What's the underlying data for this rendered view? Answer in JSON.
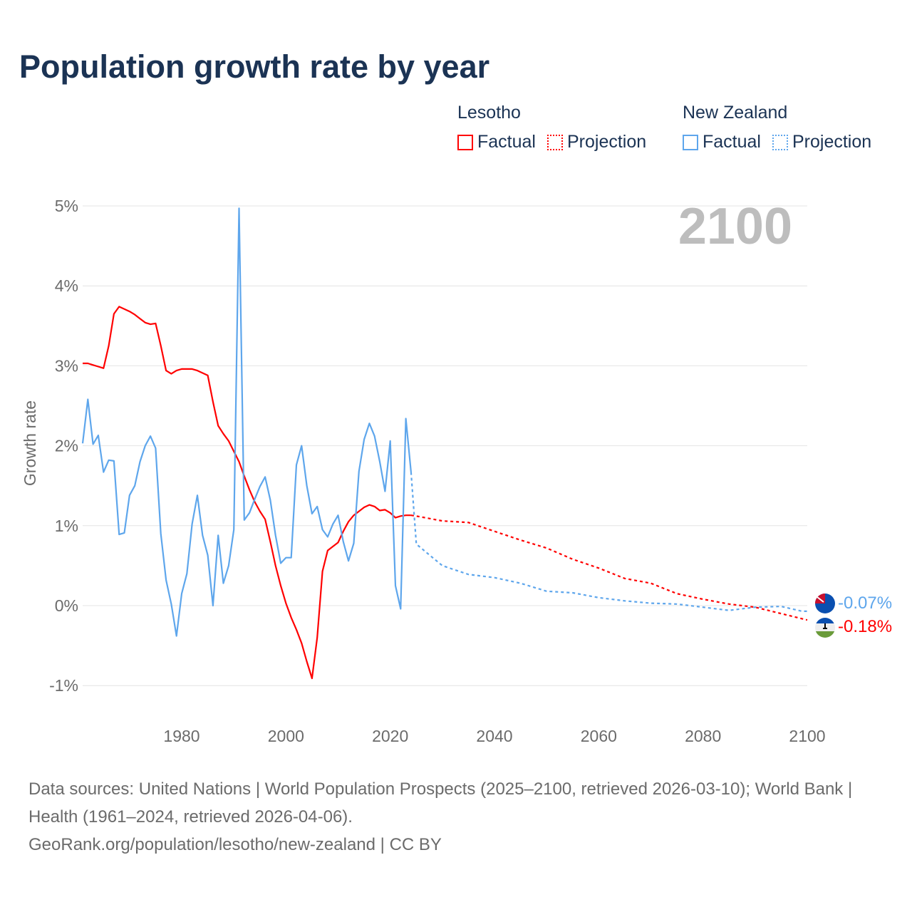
{
  "title": "Population growth rate by year",
  "legend": [
    {
      "country": "Lesotho",
      "factual_label": "Factual",
      "projection_label": "Projection",
      "color": "#ff0000"
    },
    {
      "country": "New Zealand",
      "factual_label": "Factual",
      "projection_label": "Projection",
      "color": "#5ea6ec"
    }
  ],
  "year_display": "2100",
  "end_labels": {
    "new_zealand": "-0.07%",
    "lesotho": "-0.18%"
  },
  "source_line1": "Data sources: United Nations | World Population Prospects (2025–2100, retrieved 2026-03-10); World Bank | Health (1961–2024, retrieved 2026-04-06).",
  "source_line2": "GeoRank.org/population/lesotho/new-zealand | CC BY",
  "chart_data": {
    "type": "line",
    "title": "Population growth rate by year",
    "xlabel": "",
    "ylabel": "Growth rate",
    "xlim": [
      1961,
      2100
    ],
    "ylim": [
      -1.2,
      5
    ],
    "x_ticks": [
      1980,
      2000,
      2020,
      2040,
      2060,
      2080,
      2100
    ],
    "x_tick_labels": [
      "1980",
      "2000",
      "2020",
      "2040",
      "2060",
      "2080",
      "2100"
    ],
    "y_ticks": [
      -1,
      0,
      1,
      2,
      3,
      4,
      5
    ],
    "y_tick_labels": [
      "-1%",
      "0%",
      "1%",
      "2%",
      "3%",
      "4%",
      "5%"
    ],
    "grid": true,
    "legend_position": "top-right",
    "series": [
      {
        "name": "Lesotho Factual",
        "color": "#ff0000",
        "dashed": false,
        "x_start": 1961,
        "values": [
          3.03,
          3.03,
          3.01,
          2.99,
          2.97,
          3.25,
          3.65,
          3.74,
          3.71,
          3.68,
          3.64,
          3.59,
          3.54,
          3.52,
          3.53,
          3.25,
          2.94,
          2.9,
          2.94,
          2.96,
          2.96,
          2.96,
          2.94,
          2.91,
          2.88,
          2.55,
          2.25,
          2.15,
          2.06,
          1.93,
          1.8,
          1.62,
          1.45,
          1.3,
          1.18,
          1.08,
          0.8,
          0.5,
          0.25,
          0.03,
          -0.15,
          -0.3,
          -0.47,
          -0.7,
          -0.91,
          -0.4,
          0.43,
          0.69,
          0.74,
          0.79,
          0.93,
          1.05,
          1.13,
          1.18,
          1.23,
          1.26,
          1.24,
          1.19,
          1.2,
          1.16,
          1.1,
          1.12,
          1.13,
          1.13
        ]
      },
      {
        "name": "Lesotho Projection",
        "color": "#ff0000",
        "dashed": true,
        "x": [
          2024,
          2025,
          2030,
          2035,
          2040,
          2045,
          2050,
          2055,
          2060,
          2065,
          2070,
          2075,
          2080,
          2085,
          2090,
          2095,
          2100
        ],
        "values": [
          1.13,
          1.12,
          1.06,
          1.04,
          0.93,
          0.82,
          0.72,
          0.58,
          0.47,
          0.34,
          0.28,
          0.15,
          0.08,
          0.02,
          -0.02,
          -0.1,
          -0.18
        ]
      },
      {
        "name": "New Zealand Factual",
        "color": "#5ea6ec",
        "dashed": false,
        "x_start": 1961,
        "values": [
          2.03,
          2.58,
          2.02,
          2.13,
          1.67,
          1.82,
          1.81,
          0.89,
          0.91,
          1.38,
          1.5,
          1.8,
          2.0,
          2.12,
          1.97,
          0.9,
          0.32,
          0.02,
          -0.38,
          0.15,
          0.4,
          1.02,
          1.38,
          0.88,
          0.63,
          0.0,
          0.88,
          0.28,
          0.5,
          0.95,
          4.97,
          1.07,
          1.16,
          1.33,
          1.49,
          1.61,
          1.32,
          0.88,
          0.53,
          0.6,
          0.6,
          1.76,
          2.0,
          1.5,
          1.15,
          1.24,
          0.95,
          0.86,
          1.02,
          1.13,
          0.8,
          0.56,
          0.78,
          1.68,
          2.08,
          2.28,
          2.12,
          1.8,
          1.43,
          2.06,
          0.25,
          -0.04,
          2.34,
          1.67
        ]
      },
      {
        "name": "New Zealand Projection",
        "color": "#5ea6ec",
        "dashed": true,
        "x": [
          2024,
          2025,
          2030,
          2035,
          2040,
          2045,
          2050,
          2055,
          2060,
          2065,
          2070,
          2075,
          2080,
          2085,
          2090,
          2095,
          2099,
          2100
        ],
        "values": [
          1.67,
          0.77,
          0.5,
          0.39,
          0.35,
          0.28,
          0.18,
          0.16,
          0.1,
          0.06,
          0.03,
          0.02,
          -0.02,
          -0.06,
          -0.02,
          -0.01,
          -0.07,
          -0.07
        ]
      }
    ]
  }
}
